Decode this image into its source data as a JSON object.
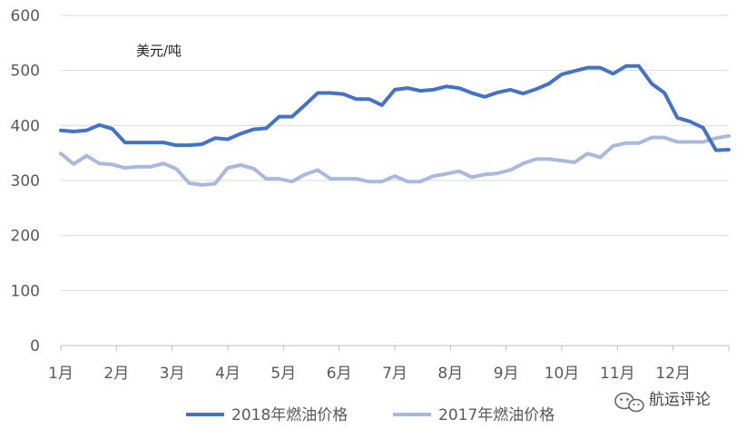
{
  "chart_data": {
    "type": "line",
    "unit_label": "美元/吨",
    "ylim": [
      0,
      600
    ],
    "yticks": [
      0,
      100,
      200,
      300,
      400,
      500,
      600
    ],
    "month_labels": [
      "1月",
      "2月",
      "3月",
      "4月",
      "5月",
      "6月",
      "7月",
      "8月",
      "9月",
      "10月",
      "11月",
      "12月"
    ],
    "grid": true,
    "legend_position": "bottom",
    "series": [
      {
        "name": "2018年燃油价格",
        "color": "#4472C4",
        "values": [
          391,
          389,
          391,
          401,
          394,
          369,
          369,
          369,
          369,
          364,
          364,
          366,
          377,
          375,
          385,
          393,
          395,
          416,
          416,
          437,
          459,
          459,
          457,
          448,
          448,
          437,
          465,
          468,
          463,
          465,
          471,
          468,
          459,
          452,
          460,
          465,
          458,
          466,
          476,
          493,
          499,
          505,
          505,
          494,
          508,
          508,
          476,
          459,
          414,
          407,
          396,
          355,
          356
        ]
      },
      {
        "name": "2017年燃油价格",
        "color": "#A9B8DF",
        "values": [
          349,
          330,
          345,
          331,
          329,
          323,
          325,
          325,
          331,
          321,
          295,
          292,
          294,
          323,
          328,
          322,
          303,
          303,
          298,
          311,
          319,
          303,
          303,
          303,
          298,
          298,
          308,
          298,
          298,
          308,
          312,
          317,
          306,
          311,
          313,
          319,
          331,
          339,
          339,
          336,
          333,
          349,
          342,
          363,
          368,
          368,
          378,
          378,
          370,
          370,
          370,
          377,
          381
        ]
      }
    ]
  },
  "watermark": {
    "text": "航运评论",
    "icon": "wechat-icon"
  }
}
